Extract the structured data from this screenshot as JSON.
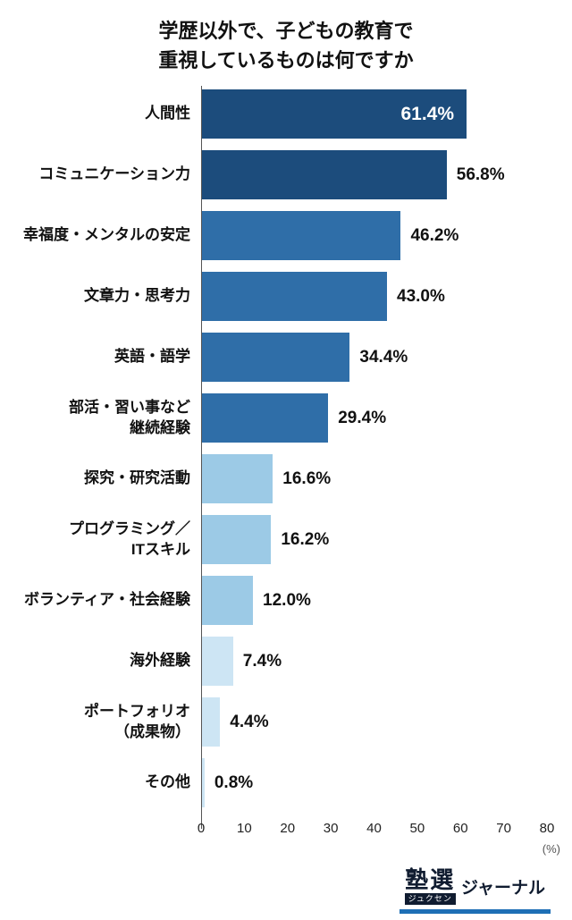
{
  "title": {
    "line1": "学歴以外で、子どもの教育で",
    "line2": "重視しているものは何ですか"
  },
  "chart_data": {
    "type": "bar",
    "orientation": "horizontal",
    "title": "学歴以外で、子どもの教育で重視しているものは何ですか",
    "categories": [
      "人間性",
      "コミュニケーション力",
      "幸福度・メンタルの安定",
      "文章力・思考力",
      "英語・語学",
      "部活・習い事など\n継続経験",
      "探究・研究活動",
      "プログラミング／\nITスキル",
      "ボランティア・社会経験",
      "海外経験",
      "ポートフォリオ\n（成果物）",
      "その他"
    ],
    "values": [
      61.4,
      56.8,
      46.2,
      43.0,
      34.4,
      29.4,
      16.6,
      16.2,
      12.0,
      7.4,
      4.4,
      0.8
    ],
    "value_labels": [
      "61.4%",
      "56.8%",
      "46.2%",
      "43.0%",
      "34.4%",
      "29.4%",
      "16.6%",
      "16.2%",
      "12.0%",
      "7.4%",
      "4.4%",
      "0.8%"
    ],
    "value_inside_bar": [
      true,
      false,
      false,
      false,
      false,
      false,
      false,
      false,
      false,
      false,
      false,
      false
    ],
    "bar_colors": [
      "#1c4c7c",
      "#1c4c7c",
      "#2f6ea8",
      "#2f6ea8",
      "#2f6ea8",
      "#2f6ea8",
      "#9ccae6",
      "#9ccae6",
      "#9ccae6",
      "#cde5f4",
      "#cde5f4",
      "#cde5f4"
    ],
    "xlim": [
      0,
      80
    ],
    "x_ticks": [
      "0",
      "10",
      "20",
      "30",
      "40",
      "50",
      "60",
      "70",
      "80"
    ],
    "x_unit": "(%)",
    "grid": false,
    "legend": false
  },
  "footer": {
    "logo_main": "塾選",
    "logo_ruby": "ジュクセン",
    "logo_suffix": "ジャーナル"
  },
  "colors": {
    "dark_blue": "#1c4c7c",
    "medium_blue": "#2f6ea8",
    "light_blue": "#9ccae6",
    "pale_blue": "#cde5f4",
    "logo_underline": "#1e6fb5"
  }
}
